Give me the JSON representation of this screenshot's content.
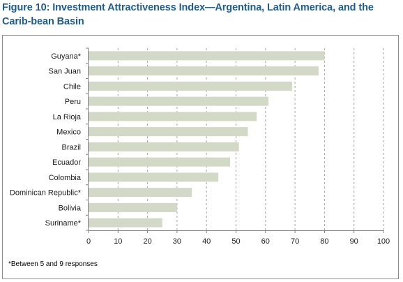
{
  "figure": {
    "title": "Figure 10: Investment Attractiveness Index—Argentina, Latin America, and the Carib-bean Basin",
    "footnote": "*Between 5 and 9 responses"
  },
  "chart_data": {
    "type": "bar",
    "orientation": "horizontal",
    "title": "",
    "xlabel": "",
    "ylabel": "",
    "categories": [
      "Guyana*",
      "San Juan",
      "Chile",
      "Peru",
      "La Rioja",
      "Mexico",
      "Brazil",
      "Ecuador",
      "Colombia",
      "Dominican Republic*",
      "Bolivia",
      "Suriname*"
    ],
    "values": [
      80,
      78,
      69,
      61,
      57,
      54,
      51,
      48,
      44,
      35,
      30,
      25
    ],
    "xlim": [
      0,
      100
    ],
    "ticks": [
      "0",
      "10",
      "20",
      "30",
      "40",
      "50",
      "60",
      "70",
      "80",
      "90",
      "100"
    ],
    "grid": "vertical dashed",
    "bar_color": "#d3d9c7",
    "grid_color": "#a6a6a6"
  }
}
